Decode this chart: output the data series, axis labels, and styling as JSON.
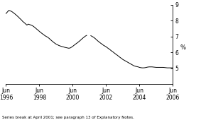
{
  "title": "",
  "ylabel": "%",
  "footnote": "Series break at April 2001; see paragraph 13 of Explanatory Notes.",
  "ylim": [
    4,
    9
  ],
  "yticks": [
    5,
    6,
    7,
    8,
    9
  ],
  "ytick_labels": [
    "5",
    "6",
    "7",
    "8",
    "9"
  ],
  "xtick_labels": [
    "Jun\n1996",
    "Jun\n1998",
    "Jun\n2000",
    "Jun\n2002",
    "Jun\n2004",
    "Jun\n2006"
  ],
  "xtick_positions": [
    0,
    24,
    48,
    72,
    96,
    120
  ],
  "line_color": "#000000",
  "background_color": "#ffffff",
  "data_x": [
    0,
    1,
    2,
    3,
    4,
    5,
    6,
    7,
    8,
    9,
    10,
    11,
    12,
    13,
    14,
    15,
    16,
    17,
    18,
    19,
    20,
    21,
    22,
    23,
    24,
    25,
    26,
    27,
    28,
    29,
    30,
    31,
    32,
    33,
    34,
    35,
    36,
    37,
    38,
    39,
    40,
    41,
    42,
    43,
    44,
    45,
    46,
    47,
    48,
    49,
    50,
    51,
    52,
    53,
    54,
    55,
    56,
    57,
    58,
    61,
    62,
    63,
    64,
    65,
    66,
    67,
    68,
    69,
    70,
    71,
    72,
    73,
    74,
    75,
    76,
    77,
    78,
    79,
    80,
    81,
    82,
    83,
    84,
    85,
    86,
    87,
    88,
    89,
    90,
    91,
    92,
    93,
    94,
    95,
    96,
    97,
    98,
    99,
    100,
    101,
    102,
    103,
    104,
    105,
    106,
    107,
    108,
    109,
    110,
    111,
    112,
    113,
    114,
    115,
    116,
    117,
    118,
    119,
    120
  ],
  "data_y": [
    8.45,
    8.55,
    8.65,
    8.62,
    8.58,
    8.52,
    8.45,
    8.38,
    8.3,
    8.22,
    8.13,
    8.05,
    7.95,
    7.88,
    7.8,
    7.72,
    7.78,
    7.75,
    7.72,
    7.68,
    7.62,
    7.55,
    7.47,
    7.4,
    7.32,
    7.25,
    7.18,
    7.12,
    7.05,
    7.0,
    6.95,
    6.88,
    6.8,
    6.72,
    6.65,
    6.58,
    6.52,
    6.48,
    6.43,
    6.4,
    6.37,
    6.35,
    6.32,
    6.3,
    6.28,
    6.26,
    6.27,
    6.32,
    6.38,
    6.45,
    6.52,
    6.58,
    6.65,
    6.72,
    6.8,
    6.88,
    6.95,
    7.02,
    7.07,
    7.05,
    7.0,
    6.95,
    6.88,
    6.8,
    6.72,
    6.65,
    6.58,
    6.52,
    6.45,
    6.4,
    6.35,
    6.28,
    6.22,
    6.15,
    6.08,
    6.02,
    5.95,
    5.88,
    5.82,
    5.75,
    5.68,
    5.62,
    5.55,
    5.5,
    5.45,
    5.4,
    5.35,
    5.3,
    5.25,
    5.2,
    5.15,
    5.12,
    5.1,
    5.08,
    5.05,
    5.03,
    5.02,
    5.02,
    5.03,
    5.05,
    5.07,
    5.08,
    5.08,
    5.08,
    5.07,
    5.06,
    5.05,
    5.05,
    5.05,
    5.05,
    5.05,
    5.05,
    5.04,
    5.03,
    5.02,
    5.02,
    5.02,
    5.02,
    5.02
  ]
}
